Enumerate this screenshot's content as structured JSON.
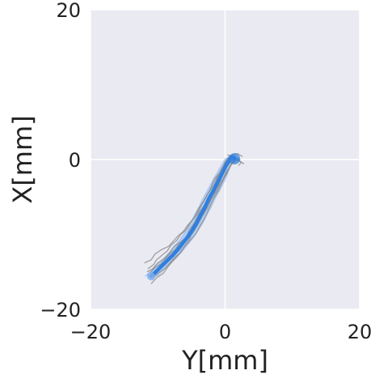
{
  "chart_data": {
    "type": "line",
    "xlabel": "Y[mm]",
    "ylabel": "X[mm]",
    "xlim": [
      -20,
      20
    ],
    "ylim": [
      -20,
      20
    ],
    "x_ticks": [
      -20,
      0,
      20
    ],
    "y_ticks": [
      -20,
      0,
      20
    ],
    "x_tick_labels": [
      "−20",
      "0",
      "20"
    ],
    "y_tick_labels": [
      "−20",
      "0",
      "20"
    ],
    "grid": true,
    "legend": "none",
    "background_color": "#eaeaf2",
    "grid_color": "#ffffff",
    "trial_color": "#8c8c8c",
    "mean_color": "#2f7fe0",
    "band_color": "#7fb0f0",
    "series": [
      {
        "role": "individual-trial",
        "x": [
          -11.2,
          -10.4,
          -9.6,
          -8.8,
          -8.2,
          -7.4,
          -6.8,
          -6.0,
          -5.2,
          -4.8,
          -4.2,
          -3.4,
          -2.8,
          -2.0,
          -1.5,
          -1.0,
          -0.4,
          0.0,
          0.5,
          0.9
        ],
        "y": [
          -15.2,
          -14.4,
          -14.0,
          -13.2,
          -12.6,
          -12.0,
          -11.2,
          -10.6,
          -9.8,
          -8.8,
          -7.8,
          -6.8,
          -5.6,
          -4.4,
          -3.4,
          -2.2,
          -1.2,
          -0.3,
          0.3,
          0.6
        ]
      },
      {
        "role": "individual-trial",
        "x": [
          -11.5,
          -10.6,
          -10.2,
          -9.4,
          -8.6,
          -8.0,
          -7.2,
          -6.6,
          -5.8,
          -5.0,
          -4.2,
          -3.6,
          -2.8,
          -2.2,
          -1.6,
          -0.8,
          -0.2,
          0.4,
          1.2,
          0.6
        ],
        "y": [
          -14.6,
          -14.0,
          -13.4,
          -12.8,
          -12.2,
          -11.4,
          -10.8,
          -10.0,
          -9.4,
          -8.2,
          -7.4,
          -6.2,
          -5.0,
          -4.0,
          -2.6,
          -1.8,
          -0.8,
          0.0,
          0.4,
          0.1
        ]
      },
      {
        "role": "individual-trial",
        "x": [
          -11.0,
          -10.2,
          -9.2,
          -8.4,
          -7.6,
          -7.0,
          -6.2,
          -5.4,
          -4.8,
          -4.2,
          -3.6,
          -3.0,
          -2.4,
          -1.6,
          -0.8,
          -0.2,
          0.6,
          1.4,
          2.4,
          2.0
        ],
        "y": [
          -16.6,
          -15.8,
          -15.2,
          -14.2,
          -13.4,
          -12.8,
          -11.8,
          -10.8,
          -9.6,
          -8.6,
          -7.4,
          -6.2,
          -5.2,
          -4.0,
          -2.8,
          -1.6,
          -0.6,
          0.2,
          -0.4,
          -0.8
        ]
      },
      {
        "role": "individual-trial",
        "x": [
          -12.0,
          -11.0,
          -10.4,
          -9.4,
          -8.4,
          -7.8,
          -7.0,
          -6.2,
          -5.6,
          -4.6,
          -4.0,
          -3.2,
          -2.6,
          -1.8,
          -1.2,
          -0.6,
          0.0,
          0.8,
          1.6,
          2.8
        ],
        "y": [
          -13.8,
          -13.4,
          -12.6,
          -12.0,
          -11.6,
          -11.0,
          -10.2,
          -9.6,
          -8.8,
          -7.8,
          -6.6,
          -5.6,
          -4.6,
          -3.6,
          -2.4,
          -1.4,
          -0.4,
          0.4,
          0.2,
          -0.6
        ]
      },
      {
        "role": "individual-trial",
        "x": [
          -10.8,
          -10.0,
          -9.0,
          -8.2,
          -7.4,
          -6.6,
          -6.0,
          -5.2,
          -4.4,
          -3.8,
          -3.0,
          -2.4,
          -1.8,
          -1.0,
          -0.4,
          0.2,
          0.8,
          1.6,
          0.8,
          1.8
        ],
        "y": [
          -16.0,
          -15.2,
          -14.6,
          -13.8,
          -13.0,
          -12.4,
          -11.6,
          -10.8,
          -10.0,
          -9.0,
          -7.8,
          -6.6,
          -5.4,
          -4.2,
          -3.0,
          -1.8,
          -0.8,
          0.0,
          0.5,
          0.0
        ]
      },
      {
        "role": "individual-trial",
        "x": [
          -11.6,
          -10.8,
          -10.0,
          -9.0,
          -8.2,
          -7.6,
          -6.6,
          -5.8,
          -5.2,
          -4.4,
          -3.8,
          -3.0,
          -2.2,
          -1.4,
          -0.8,
          -0.2,
          0.4,
          1.0,
          1.8,
          2.6
        ],
        "y": [
          -15.0,
          -14.6,
          -13.8,
          -13.2,
          -12.4,
          -11.6,
          -11.0,
          -10.4,
          -9.2,
          -8.4,
          -7.0,
          -6.0,
          -4.8,
          -3.8,
          -2.6,
          -1.4,
          -0.4,
          0.6,
          0.8,
          0.4
        ]
      },
      {
        "role": "individual-trial",
        "x": [
          -11.2,
          -10.4,
          -9.6,
          -8.6,
          -7.8,
          -7.2,
          -6.4,
          -5.6,
          -4.8,
          -4.0,
          -3.4,
          -2.6,
          -2.0,
          -1.2,
          -0.6,
          0.2,
          0.8,
          1.4,
          2.2,
          1.2
        ],
        "y": [
          -15.8,
          -15.0,
          -14.2,
          -13.6,
          -12.8,
          -12.0,
          -11.4,
          -10.6,
          -9.8,
          -8.6,
          -7.6,
          -6.4,
          -5.2,
          -4.2,
          -3.0,
          -2.0,
          -0.8,
          0.2,
          0.0,
          -0.4
        ]
      },
      {
        "role": "individual-trial",
        "x": [
          -10.6,
          -9.8,
          -9.0,
          -8.4,
          -7.6,
          -6.8,
          -6.2,
          -5.4,
          -4.6,
          -4.0,
          -3.2,
          -2.6,
          -1.8,
          -1.2,
          -0.4,
          0.2,
          1.0,
          1.6,
          0.4,
          1.4
        ],
        "y": [
          -15.4,
          -14.8,
          -14.0,
          -13.4,
          -12.6,
          -12.0,
          -11.2,
          -10.2,
          -9.4,
          -8.4,
          -7.2,
          -6.0,
          -5.0,
          -3.8,
          -2.8,
          -1.6,
          -0.6,
          0.4,
          0.6,
          0.2
        ]
      }
    ],
    "mean": {
      "x": [
        -11.0,
        -10.2,
        -9.4,
        -8.6,
        -7.8,
        -7.1,
        -6.4,
        -5.7,
        -5.0,
        -4.3,
        -3.7,
        -3.0,
        -2.4,
        -1.7,
        -1.0,
        -0.4,
        0.2,
        0.8,
        1.2,
        1.4
      ],
      "y": [
        -15.6,
        -14.9,
        -14.2,
        -13.5,
        -12.8,
        -12.1,
        -11.3,
        -10.5,
        -9.6,
        -8.6,
        -7.5,
        -6.4,
        -5.2,
        -4.1,
        -2.9,
        -1.8,
        -0.7,
        0.2,
        0.3,
        0.1
      ]
    },
    "band": {
      "lower_x": [
        -12.0,
        -11.2,
        -10.4,
        -9.6,
        -8.8,
        -8.1,
        -7.4,
        -6.7,
        -6.0,
        -5.3,
        -4.7,
        -4.0,
        -3.4,
        -2.7,
        -2.0,
        -1.3,
        -0.6,
        0.0,
        0.4,
        0.6
      ],
      "upper_x": [
        -10.0,
        -9.2,
        -8.4,
        -7.6,
        -6.8,
        -6.1,
        -5.4,
        -4.7,
        -4.0,
        -3.3,
        -2.7,
        -2.0,
        -1.4,
        -0.7,
        0.0,
        0.5,
        1.0,
        1.6,
        2.0,
        2.2
      ]
    }
  }
}
